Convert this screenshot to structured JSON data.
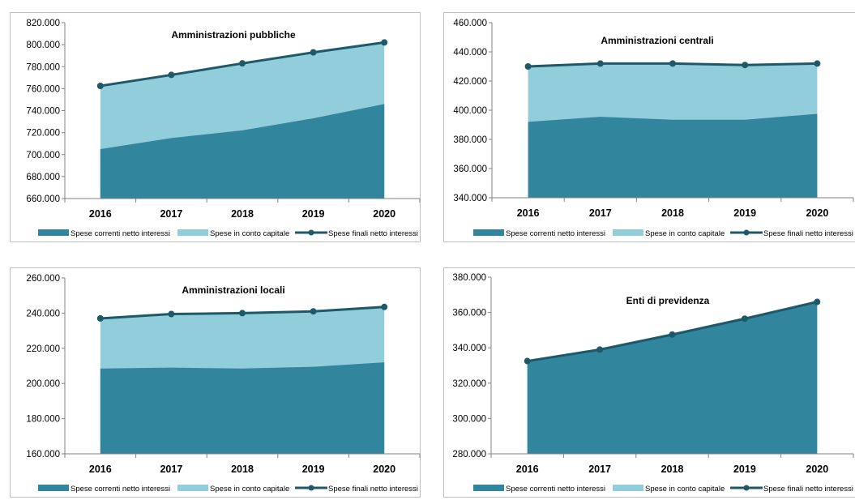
{
  "colors": {
    "correnti": "#31859c",
    "capitale": "#92cddc",
    "finali": "#1f5868"
  },
  "legend": [
    "Spese correnti netto interessi",
    "Spese in conto capitale",
    "Spese finali netto interessi"
  ],
  "chart_data": [
    {
      "type": "area",
      "title": "Amministrazioni pubbliche",
      "categories": [
        "2016",
        "2017",
        "2018",
        "2019",
        "2020"
      ],
      "ylim": [
        660000,
        820000
      ],
      "yticks": [
        "660.000",
        "680.000",
        "700.000",
        "720.000",
        "740.000",
        "760.000",
        "780.000",
        "800.000",
        "820.000"
      ],
      "series": [
        {
          "name": "Spese correnti netto interessi",
          "values": [
            705000,
            715000,
            722000,
            733000,
            746000
          ]
        },
        {
          "name": "Spese in conto capitale",
          "values": [
            57500,
            57500,
            61000,
            60000,
            56000
          ]
        },
        {
          "name": "Spese finali netto interessi",
          "values": [
            762500,
            772500,
            783000,
            793000,
            802000
          ]
        }
      ],
      "legend_position": "bottom",
      "grid": false
    },
    {
      "type": "area",
      "title": "Amministrazioni centrali",
      "categories": [
        "2016",
        "2017",
        "2018",
        "2019",
        "2020"
      ],
      "ylim": [
        340000,
        460000
      ],
      "yticks": [
        "340.000",
        "360.000",
        "380.000",
        "400.000",
        "420.000",
        "440.000",
        "460.000"
      ],
      "series": [
        {
          "name": "Spese correnti netto interessi",
          "values": [
            392000,
            395500,
            393500,
            393500,
            397500
          ]
        },
        {
          "name": "Spese in conto capitale",
          "values": [
            38000,
            36500,
            38500,
            37500,
            34500
          ]
        },
        {
          "name": "Spese finali netto interessi",
          "values": [
            430000,
            432000,
            432000,
            431000,
            432000
          ]
        }
      ],
      "legend_position": "bottom",
      "grid": false
    },
    {
      "type": "area",
      "title": "Amministrazioni locali",
      "categories": [
        "2016",
        "2017",
        "2018",
        "2019",
        "2020"
      ],
      "ylim": [
        160000,
        260000
      ],
      "yticks": [
        "160.000",
        "180.000",
        "200.000",
        "220.000",
        "240.000",
        "260.000"
      ],
      "series": [
        {
          "name": "Spese correnti netto interessi",
          "values": [
            208500,
            209000,
            208500,
            209500,
            212000
          ]
        },
        {
          "name": "Spese in conto capitale",
          "values": [
            28500,
            30500,
            31500,
            31500,
            31500
          ]
        },
        {
          "name": "Spese finali netto interessi",
          "values": [
            237000,
            239500,
            240000,
            241000,
            243500
          ]
        }
      ],
      "legend_position": "bottom",
      "grid": false
    },
    {
      "type": "area",
      "title": "Enti di previdenza",
      "categories": [
        "2016",
        "2017",
        "2018",
        "2019",
        "2020"
      ],
      "ylim": [
        280000,
        380000
      ],
      "yticks": [
        "280.000",
        "300.000",
        "320.000",
        "340.000",
        "360.000",
        "380.000"
      ],
      "series": [
        {
          "name": "Spese correnti netto interessi",
          "values": [
            332500,
            339000,
            347500,
            356500,
            366000
          ]
        },
        {
          "name": "Spese in conto capitale",
          "values": [
            0,
            0,
            0,
            0,
            0
          ]
        },
        {
          "name": "Spese finali netto interessi",
          "values": [
            332500,
            339000,
            347500,
            356500,
            366000
          ]
        }
      ],
      "legend_position": "bottom",
      "grid": false
    }
  ]
}
